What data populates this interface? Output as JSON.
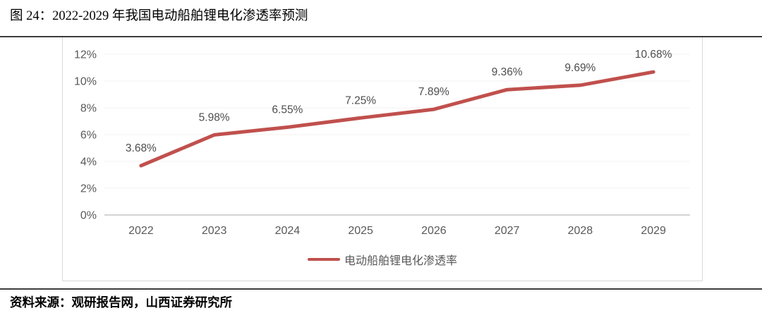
{
  "figure": {
    "title": "图 24：2022-2029 年我国电动船舶锂电化渗透率预测",
    "source": "资料来源：观研报告网，山西证券研究所"
  },
  "colors": {
    "line": "#c0504d",
    "axis_line": "#c6c6c6",
    "grid_line": "#f4f2f1",
    "tick_text": "#595959",
    "data_label_text": "#4d4d4d",
    "rule": "#3d3d3d",
    "box_border": "#d9d9d9"
  },
  "chart_data": {
    "type": "line",
    "title": "",
    "xlabel": "",
    "ylabel": "",
    "categories": [
      "2022",
      "2023",
      "2024",
      "2025",
      "2026",
      "2027",
      "2028",
      "2029"
    ],
    "series": [
      {
        "name": "电动船舶锂电化渗透率",
        "values": [
          3.68,
          5.98,
          6.55,
          7.25,
          7.89,
          9.36,
          9.69,
          10.68
        ],
        "labels": [
          "3.68%",
          "5.98%",
          "6.55%",
          "7.25%",
          "7.89%",
          "9.36%",
          "9.69%",
          "10.68%"
        ],
        "color": "#c0504d"
      }
    ],
    "ylim": [
      0,
      12
    ],
    "yticks": [
      0,
      2,
      4,
      6,
      8,
      10,
      12
    ],
    "ytick_labels": [
      "0%",
      "2%",
      "4%",
      "6%",
      "8%",
      "10%",
      "12%"
    ],
    "grid": true,
    "legend_position": "bottom-center"
  }
}
